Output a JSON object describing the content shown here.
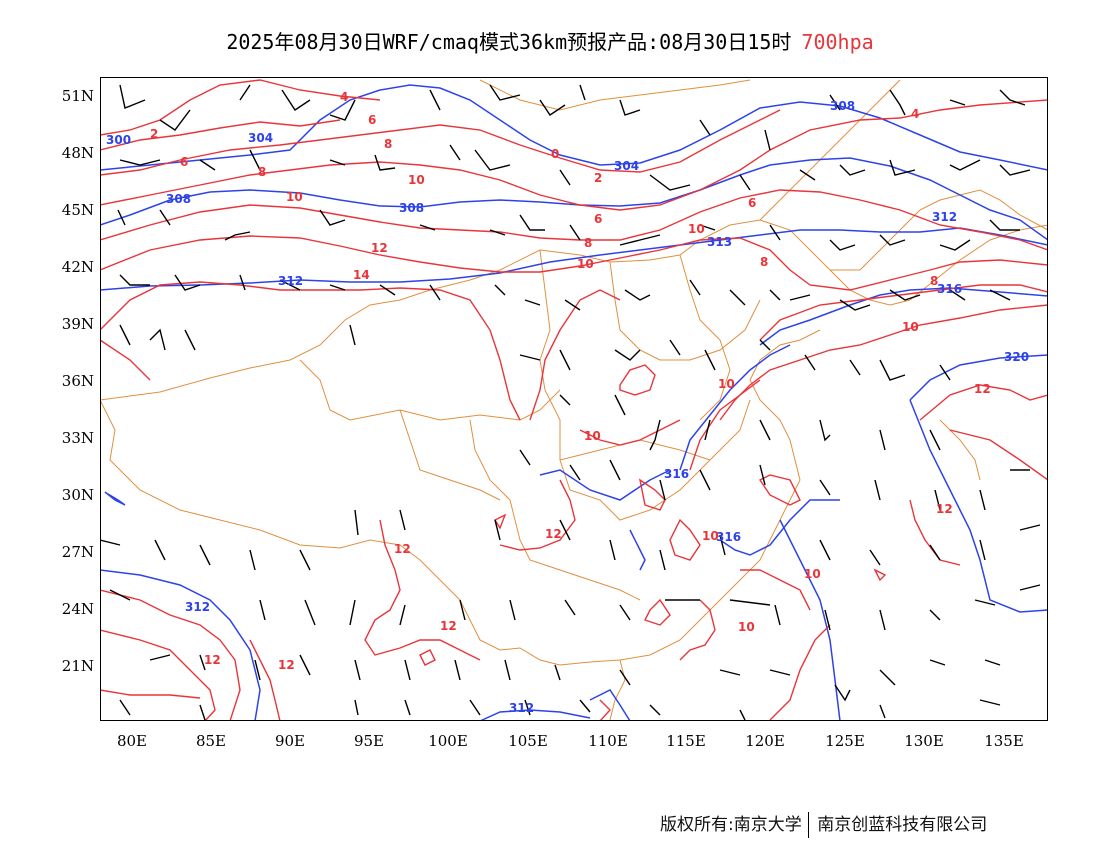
{
  "title": {
    "main": "2025年08月30日WRF/cmaq模式36km预报产品:08月30日15时",
    "level": "700hpa"
  },
  "axes": {
    "lat_labels": [
      "51N",
      "48N",
      "45N",
      "42N",
      "39N",
      "36N",
      "33N",
      "30N",
      "27N",
      "24N",
      "21N"
    ],
    "lon_labels": [
      "80E",
      "85E",
      "90E",
      "95E",
      "100E",
      "105E",
      "110E",
      "115E",
      "120E",
      "125E",
      "130E",
      "135E"
    ]
  },
  "contour_labels": {
    "height_blue": [
      "308",
      "300",
      "304",
      "304",
      "308",
      "308",
      "312",
      "313",
      "312",
      "316",
      "320",
      "316",
      "316",
      "312",
      "312"
    ],
    "temperature_red": [
      "4",
      "2",
      "6",
      "8",
      "6",
      "8",
      "10",
      "10",
      "0",
      "2",
      "6",
      "10",
      "8",
      "12",
      "14",
      "10",
      "8",
      "6",
      "4",
      "8",
      "10",
      "12",
      "10",
      "10",
      "10",
      "12",
      "10",
      "12",
      "12",
      "12",
      "12",
      "10",
      "10",
      "12",
      "12"
    ]
  },
  "colors": {
    "height_contour": "#2d43e8",
    "temperature_contour": "#e8353a",
    "boundary": "#e09040",
    "wind_barb": "#000000"
  },
  "footer": {
    "copyright": "版权所有:南京大学",
    "company": "南京创蓝科技有限公司"
  }
}
